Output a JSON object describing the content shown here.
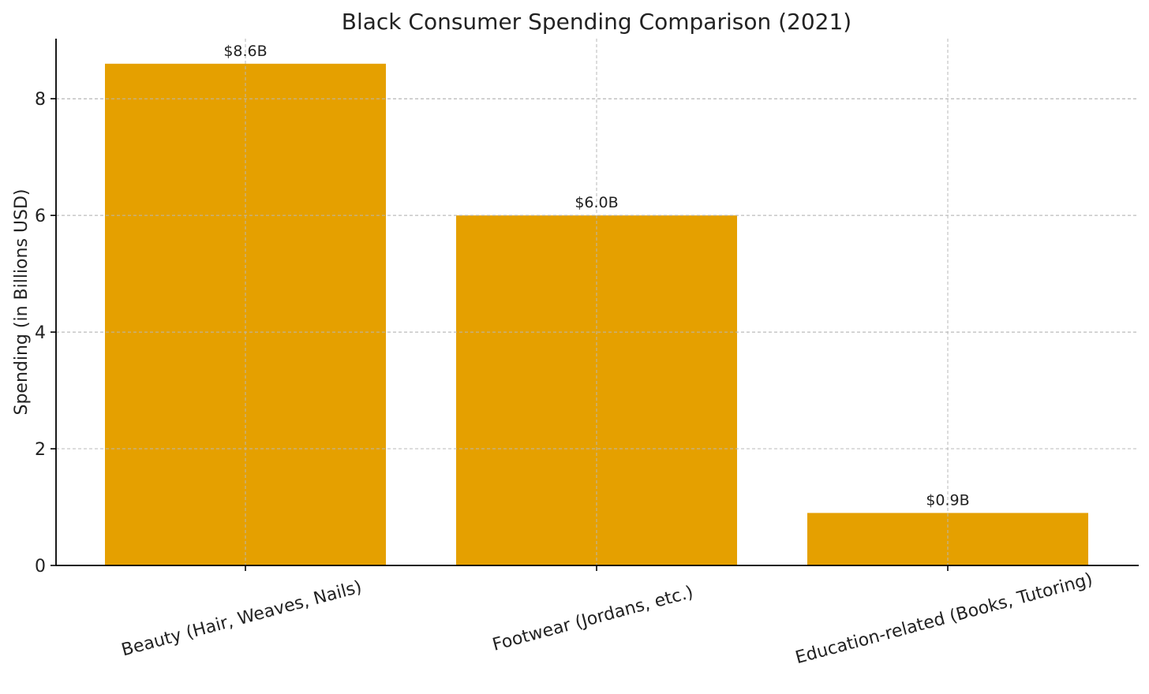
{
  "chart_data": {
    "type": "bar",
    "title": "Black Consumer Spending Comparison (2021)",
    "xlabel": "",
    "ylabel": "Spending (in Billions USD)",
    "categories": [
      "Beauty (Hair, Weaves, Nails)",
      "Footwear (Jordans, etc.)",
      "Education-related (Books, Tutoring)"
    ],
    "values": [
      8.6,
      6.0,
      0.9
    ],
    "data_labels": [
      "$8.6B",
      "$6.0B",
      "$0.9B"
    ],
    "ylim": [
      0,
      9.03
    ],
    "yticks": [
      0,
      2,
      4,
      6,
      8
    ],
    "ytick_labels": [
      "0",
      "2",
      "4",
      "6",
      "8"
    ],
    "bar_color": "#E5A000",
    "grid": true,
    "xtick_rotation_deg": -15
  }
}
